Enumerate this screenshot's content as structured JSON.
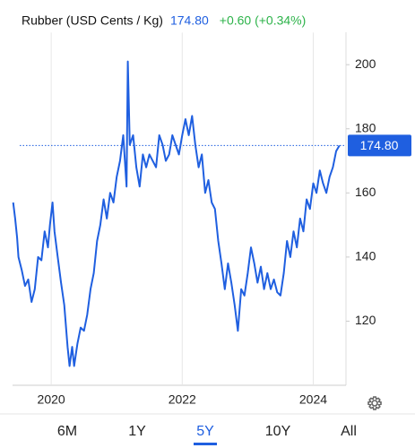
{
  "chart_data": {
    "type": "line",
    "title": "Rubber (USD Cents / Kg)",
    "price": {
      "value": 174.8,
      "label": "174.80"
    },
    "change": "+0.60 (+0.34%)",
    "color": "#1f5fe0",
    "xlim": [
      2019.41,
      2024.5
    ],
    "xticks": [
      2020,
      2022,
      2024
    ],
    "ylim": [
      100,
      210
    ],
    "yticks": [
      120,
      140,
      160,
      180,
      200
    ],
    "grid": true,
    "x": [
      2019.42,
      2019.45,
      2019.48,
      2019.5,
      2019.55,
      2019.6,
      2019.65,
      2019.7,
      2019.75,
      2019.8,
      2019.85,
      2019.9,
      2019.95,
      2019.98,
      2020.02,
      2020.05,
      2020.1,
      2020.15,
      2020.2,
      2020.25,
      2020.28,
      2020.32,
      2020.35,
      2020.4,
      2020.45,
      2020.5,
      2020.55,
      2020.6,
      2020.65,
      2020.7,
      2020.75,
      2020.8,
      2020.85,
      2020.9,
      2020.95,
      2021.0,
      2021.05,
      2021.1,
      2021.15,
      2021.17,
      2021.2,
      2021.25,
      2021.3,
      2021.35,
      2021.4,
      2021.45,
      2021.5,
      2021.6,
      2021.65,
      2021.7,
      2021.75,
      2021.8,
      2021.85,
      2021.95,
      2022.0,
      2022.05,
      2022.1,
      2022.15,
      2022.2,
      2022.25,
      2022.3,
      2022.35,
      2022.4,
      2022.45,
      2022.5,
      2022.55,
      2022.6,
      2022.65,
      2022.7,
      2022.75,
      2022.8,
      2022.85,
      2022.9,
      2022.95,
      2023.0,
      2023.05,
      2023.1,
      2023.15,
      2023.2,
      2023.25,
      2023.3,
      2023.35,
      2023.4,
      2023.45,
      2023.5,
      2023.55,
      2023.6,
      2023.65,
      2023.7,
      2023.75,
      2023.8,
      2023.85,
      2023.9,
      2023.95,
      2024.0,
      2024.05,
      2024.1,
      2024.15,
      2024.2,
      2024.25,
      2024.3,
      2024.35,
      2024.4
    ],
    "series": [
      {
        "name": "Rubber",
        "color": "#1f5fe0",
        "values": [
          157,
          152,
          146,
          140,
          136,
          131,
          133,
          126,
          130,
          140,
          139,
          148,
          143,
          150,
          157,
          148,
          140,
          132,
          125,
          112,
          106,
          112,
          106,
          113,
          118,
          117,
          122,
          130,
          135,
          145,
          150,
          158,
          152,
          160,
          157,
          165,
          170,
          178,
          162,
          201,
          175,
          178,
          168,
          162,
          172,
          168,
          172,
          168,
          178,
          175,
          170,
          172,
          178,
          172,
          178,
          183,
          178,
          184,
          175,
          168,
          172,
          160,
          164,
          157,
          155,
          145,
          138,
          130,
          138,
          132,
          125,
          117,
          130,
          128,
          135,
          143,
          138,
          132,
          137,
          130,
          135,
          130,
          133,
          129,
          128,
          135,
          145,
          140,
          148,
          143,
          152,
          148,
          158,
          155,
          163,
          160,
          167,
          163,
          160,
          165,
          168,
          173,
          174.8
        ]
      }
    ],
    "ranges": [
      "6M",
      "1Y",
      "5Y",
      "10Y",
      "All"
    ],
    "selected_range": 2
  }
}
